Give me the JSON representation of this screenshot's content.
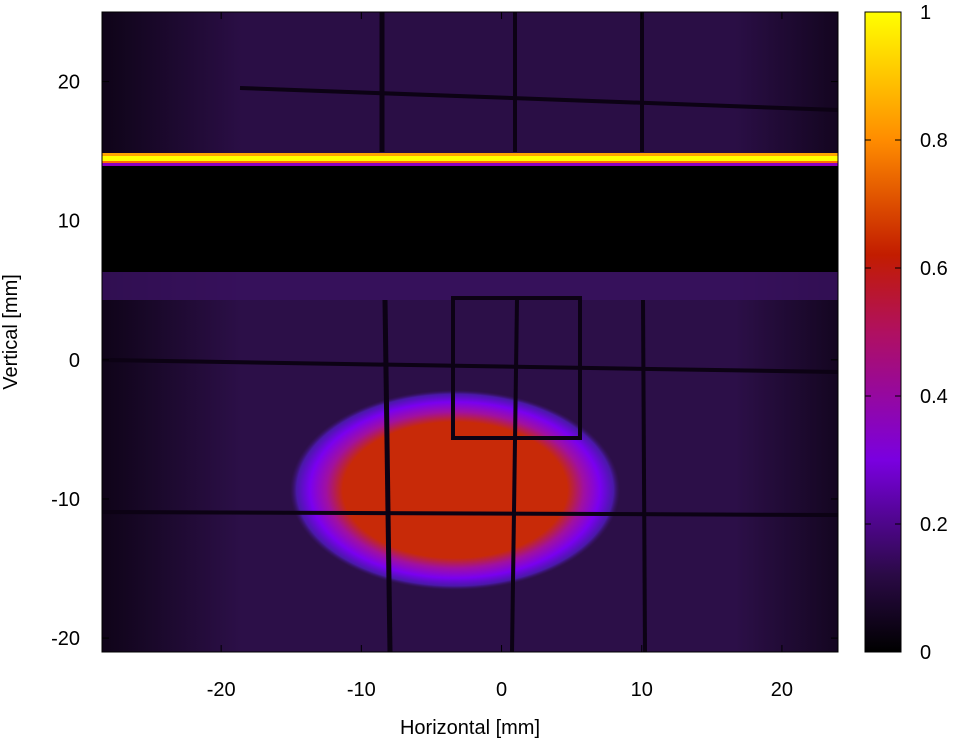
{
  "chart_data": {
    "type": "heatmap",
    "title": "",
    "xlabel": "Horizontal [mm]",
    "ylabel": "Vertical [mm]",
    "xlim": [
      -28.5,
      24
    ],
    "ylim": [
      -21,
      25
    ],
    "xticks": [
      -20,
      -10,
      0,
      10,
      20
    ],
    "yticks": [
      -20,
      -10,
      0,
      10,
      20
    ],
    "xtick_labels": [
      "-20",
      "-10",
      "0",
      "10",
      "20"
    ],
    "ytick_labels": [
      "-20",
      "-10",
      "0",
      "10",
      "20"
    ],
    "colorbar": {
      "range": [
        0,
        1
      ],
      "ticks": [
        0,
        0.2,
        0.4,
        0.6,
        0.8,
        1
      ],
      "tick_labels": [
        "0",
        "0.2",
        "0.4",
        "0.6",
        "0.8",
        "1"
      ],
      "colormap": "gnuplot (black-purple-red-orange-yellow)",
      "stops": [
        "#000000",
        "#2a0a45",
        "#7a00e0",
        "#c21c00",
        "#ff8c00",
        "#ffff00"
      ]
    },
    "regions": [
      {
        "name": "background",
        "value": 0.05
      },
      {
        "name": "bright-stripe",
        "x": [
          -28.5,
          24
        ],
        "y": [
          14.2,
          15
        ],
        "value": 1.0
      },
      {
        "name": "dark-band",
        "x": [
          -28.5,
          24
        ],
        "y": [
          6.3,
          14.2
        ],
        "value": 0.0
      },
      {
        "name": "beam-spot",
        "center": [
          -3.5,
          -9
        ],
        "radius": [
          11.5,
          6.5
        ],
        "value": 0.55
      },
      {
        "name": "inner-rectangle",
        "x": [
          -3.5,
          5.5
        ],
        "y": [
          -5.5,
          4.5
        ],
        "value": 0.08
      }
    ],
    "grid_lines_mm": {
      "vertical": [
        -9,
        0.5,
        10
      ],
      "horizontal": [
        20,
        -0.5,
        -11
      ]
    }
  }
}
